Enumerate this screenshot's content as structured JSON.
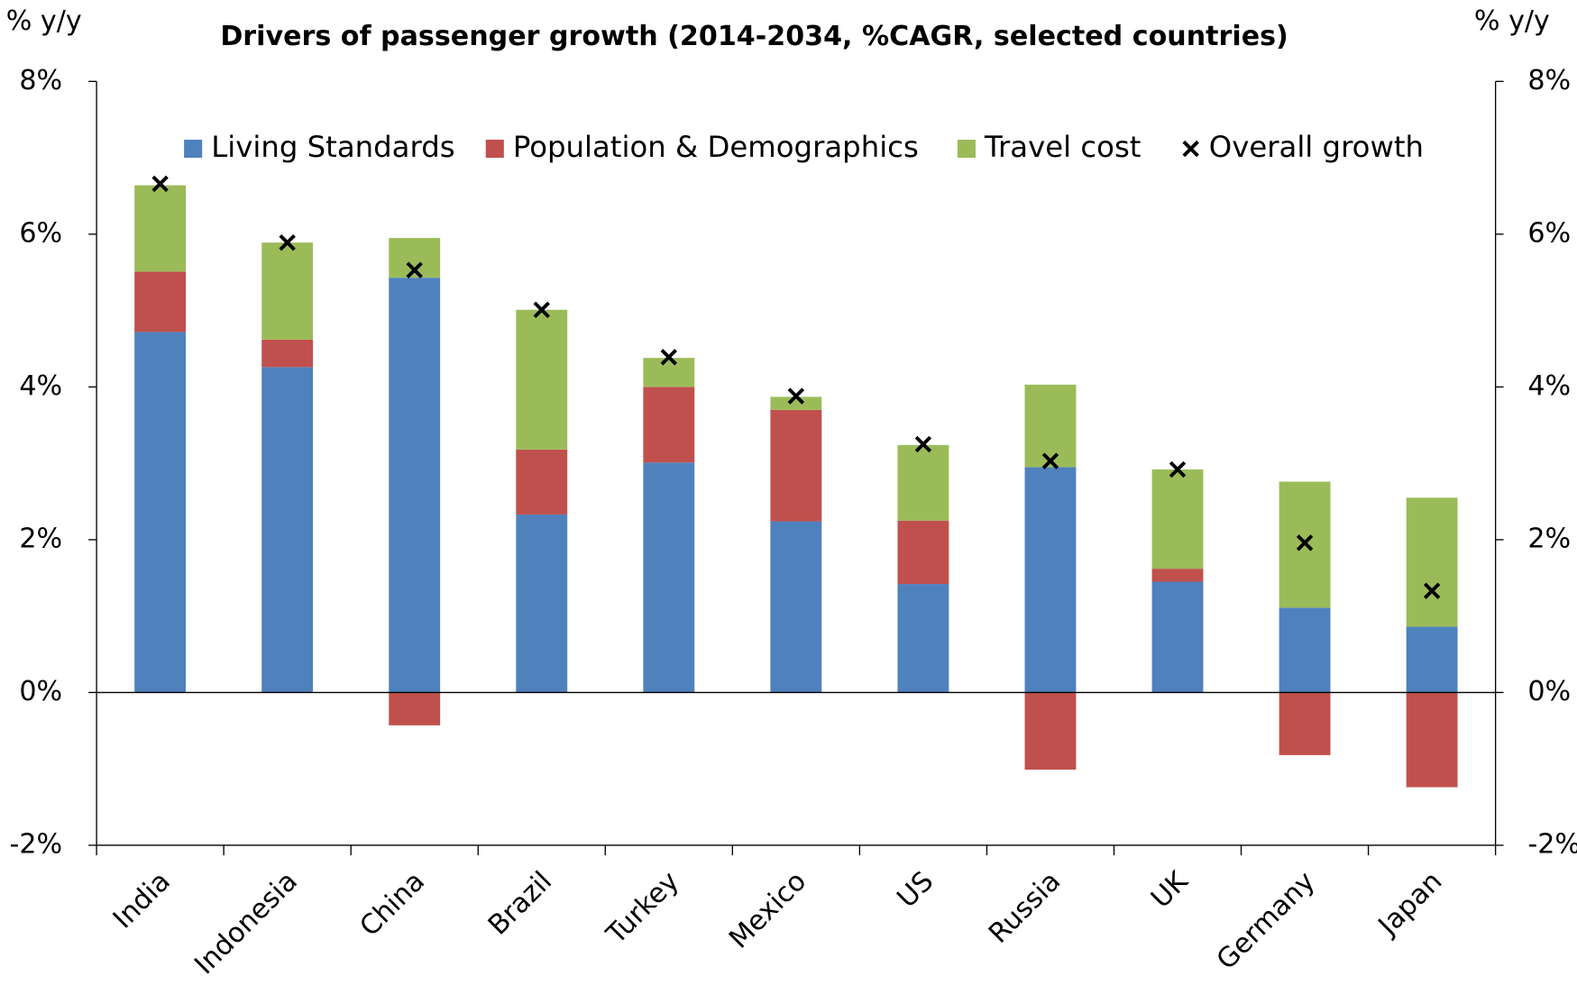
{
  "chart_data": {
    "type": "bar",
    "stacked": true,
    "title": "Drivers of passenger growth (2014-2034, %CAGR, selected countries)",
    "ylabel": "% y/y",
    "y2label": "% y/y",
    "categories": [
      "India",
      "Indonesia",
      "China",
      "Brazil",
      "Turkey",
      "Mexico",
      "US",
      "Russia",
      "UK",
      "Germany",
      "Japan"
    ],
    "series": [
      {
        "name": "Living Standards",
        "color": "#4f81bd",
        "values": [
          4.72,
          4.26,
          5.43,
          2.33,
          3.01,
          2.24,
          1.42,
          2.95,
          1.45,
          1.11,
          0.86
        ]
      },
      {
        "name": "Population & Demographics",
        "color": "#c0504d",
        "values": [
          0.79,
          0.36,
          -0.43,
          0.85,
          0.99,
          1.46,
          0.83,
          -1.01,
          0.17,
          -0.82,
          -1.24
        ]
      },
      {
        "name": "Travel cost",
        "color": "#9bbb59",
        "values": [
          1.13,
          1.27,
          0.52,
          1.83,
          0.38,
          0.17,
          0.99,
          1.08,
          1.3,
          1.65,
          1.69
        ]
      },
      {
        "name": "Overall growth",
        "color": "#000000",
        "marker": "x",
        "values": [
          6.66,
          5.89,
          5.53,
          5.01,
          4.39,
          3.88,
          3.25,
          3.03,
          2.92,
          1.96,
          1.33
        ]
      }
    ],
    "ylim": [
      -2,
      8
    ],
    "yticks": [
      {
        "value": -2,
        "label": "-2%"
      },
      {
        "value": 0,
        "label": "0%"
      },
      {
        "value": 2,
        "label": "2%"
      },
      {
        "value": 4,
        "label": "4%"
      },
      {
        "value": 6,
        "label": "6%"
      },
      {
        "value": 8,
        "label": "8%"
      }
    ],
    "y2lim": [
      -2,
      8
    ],
    "y2ticks": [
      {
        "value": -2,
        "label": "-2%"
      },
      {
        "value": 0,
        "label": "0%"
      },
      {
        "value": 2,
        "label": "2%"
      },
      {
        "value": 4,
        "label": "4%"
      },
      {
        "value": 6,
        "label": "6%"
      },
      {
        "value": 8,
        "label": "8%"
      }
    ],
    "legend": "top",
    "grid": false
  }
}
